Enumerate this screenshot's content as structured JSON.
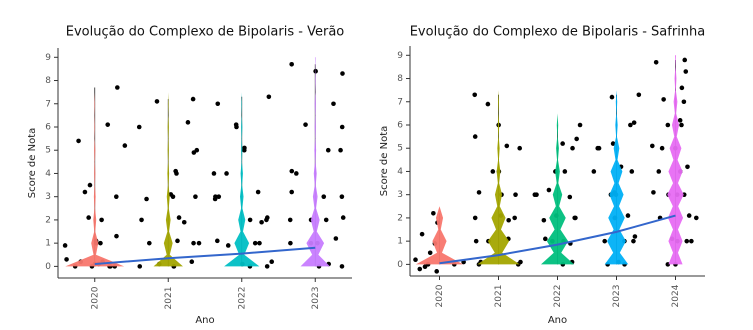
{
  "chart_data": [
    {
      "type": "violin",
      "title": "Evolução do Complexo de Bipolaris - Verão",
      "xlabel": "Ano",
      "ylabel": "Score de Nota",
      "categories": [
        "2020",
        "2021",
        "2022",
        "2023"
      ],
      "colors": [
        "#f8766d",
        "#a3a500",
        "#00bfc4",
        "#c77cff"
      ],
      "ylim": [
        -0.5,
        9.4
      ],
      "yticks": [
        0,
        1,
        2,
        3,
        4,
        5,
        6,
        7,
        8,
        9
      ],
      "violin_widths": [
        [
          1,
          0.12,
          0.05,
          0.03,
          0.02,
          0.02,
          0.01,
          0.01,
          0,
          0
        ],
        [
          0.5,
          0.15,
          0.08,
          0.05,
          0.03,
          0.02,
          0.02,
          0.01,
          0,
          0
        ],
        [
          0.6,
          0.25,
          0.12,
          0.06,
          0.04,
          0.02,
          0.02,
          0.01,
          0,
          0
        ],
        [
          0.5,
          0.3,
          0.15,
          0.08,
          0.05,
          0.03,
          0.02,
          0.02,
          0.01,
          0.01
        ]
      ],
      "points": [
        [
          0,
          0,
          0.1,
          0,
          0.2,
          0,
          0,
          0.1,
          1,
          1.1,
          0.9,
          1,
          2,
          2.1,
          3,
          3.2,
          3.5,
          5.4,
          5.2,
          6.1,
          7.7,
          1.3,
          0.3,
          0.2
        ],
        [
          0,
          0,
          0.1,
          0.2,
          1,
          1,
          1.1,
          1.9,
          2,
          2.1,
          3,
          3,
          3.1,
          4,
          4.1,
          5,
          4.9,
          6,
          6.2,
          7.2,
          7.1,
          2.9,
          1,
          0
        ],
        [
          0,
          0.1,
          0,
          1,
          1.1,
          0.9,
          2,
          2,
          2.1,
          3,
          3,
          2.9,
          4,
          4,
          5,
          5.1,
          6,
          6.1,
          7.3,
          7,
          1.9,
          3.2,
          0.2,
          1
        ],
        [
          0,
          0,
          0.1,
          1,
          1,
          1.2,
          2,
          2,
          2.1,
          3,
          3,
          3.2,
          4,
          4.1,
          5,
          5,
          6,
          6.1,
          7,
          8.3,
          8.7,
          8.4,
          2,
          1
        ]
      ],
      "trend": {
        "color": "#3366cc",
        "values": [
          0.1,
          0.35,
          0.55,
          0.8
        ]
      }
    },
    {
      "type": "violin",
      "title": "Evolução do Complexo de Bipolaris - Safrinha",
      "xlabel": "Ano",
      "ylabel": "Score de Nota",
      "categories": [
        "2020",
        "2021",
        "2022",
        "2023",
        "2024"
      ],
      "colors": [
        "#f8766d",
        "#a3a500",
        "#00bf7d",
        "#00b0f6",
        "#e76bf3"
      ],
      "ylim": [
        -0.5,
        9.4
      ],
      "yticks": [
        0,
        1,
        2,
        3,
        4,
        5,
        6,
        7,
        8,
        9
      ],
      "violin_widths": [
        [
          1,
          0.3,
          0.15,
          0,
          0,
          0,
          0,
          0,
          0,
          0
        ],
        [
          0.9,
          0.45,
          0.3,
          0.15,
          0.08,
          0.05,
          0.03,
          0.02,
          0,
          0
        ],
        [
          0.7,
          0.45,
          0.35,
          0.2,
          0.1,
          0.06,
          0.03,
          0,
          0,
          0
        ],
        [
          0.5,
          0.4,
          0.35,
          0.3,
          0.25,
          0.12,
          0.05,
          0.03,
          0,
          0
        ],
        [
          0.3,
          0.3,
          0.32,
          0.35,
          0.3,
          0.25,
          0.15,
          0.08,
          0.04,
          0.02
        ]
      ],
      "points": [
        [
          0,
          0.1,
          -0.2,
          -0.3,
          0,
          0.9,
          0.5,
          1.3,
          2.2,
          1.8,
          0.2,
          -0.1
        ],
        [
          0,
          0,
          0.1,
          1,
          1,
          1.1,
          2,
          2,
          2.1,
          3,
          3,
          3.1,
          4,
          4,
          5,
          5.1,
          6,
          6.9,
          7.3,
          5.5,
          1.9,
          0.1
        ],
        [
          0,
          0.1,
          1,
          1,
          1.1,
          2,
          2,
          2.1,
          3,
          3,
          3.2,
          4,
          4,
          5,
          5.2,
          6,
          5.4,
          1.9,
          2.9,
          0.9
        ],
        [
          0,
          0,
          0.1,
          1,
          1,
          1.2,
          2,
          2,
          2.1,
          3,
          3,
          3.1,
          4,
          4,
          4.2,
          5,
          5,
          6,
          6.1,
          7.3,
          7.2,
          5.2,
          3,
          1
        ],
        [
          0,
          0,
          1,
          1,
          1.1,
          2,
          2,
          2.1,
          3,
          3,
          3.1,
          4,
          4,
          4.2,
          5,
          5,
          6,
          6,
          6.2,
          7,
          7.1,
          7.6,
          8.7,
          8.8,
          8.3,
          5.1,
          3,
          1
        ]
      ],
      "trend": {
        "color": "#3366cc",
        "values": [
          0.05,
          0.4,
          0.85,
          1.4,
          2.1
        ]
      }
    }
  ]
}
